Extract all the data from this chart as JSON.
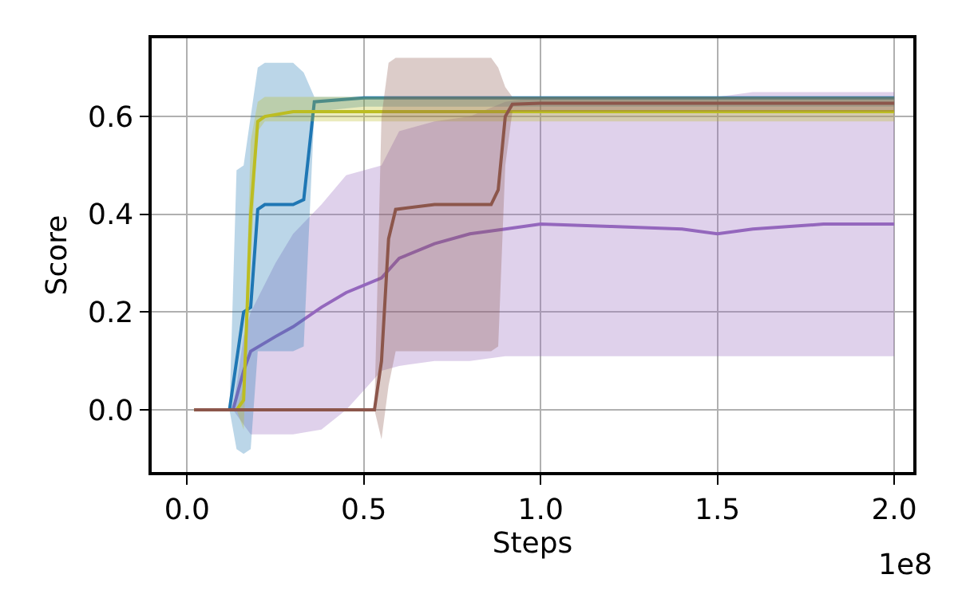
{
  "chart_data": {
    "type": "line",
    "xlabel": "Steps",
    "ylabel": "Score",
    "annotations": [
      "1e8"
    ],
    "grid": true,
    "marker": "none",
    "line_style": "solid",
    "xlim": [
      -0.1,
      2.054
    ],
    "ylim": [
      -0.127,
      0.76
    ],
    "xticks": [
      {
        "value": 0,
        "label": "0.0"
      },
      {
        "value": 0.5,
        "label": "0.5"
      },
      {
        "value": 1,
        "label": "1.0"
      },
      {
        "value": 1.5,
        "label": "1.5"
      },
      {
        "value": 2,
        "label": "2.0"
      }
    ],
    "yticks": [
      {
        "value": 0,
        "label": "0.0"
      },
      {
        "value": 0.2,
        "label": "0.2"
      },
      {
        "value": 0.4,
        "label": "0.4"
      },
      {
        "value": 0.6,
        "label": "0.6"
      }
    ],
    "series": [
      {
        "color": "#9467bd",
        "x": [
          0.02,
          0.13,
          0.16,
          0.18,
          0.25,
          0.3,
          0.38,
          0.45,
          0.55,
          0.6,
          0.7,
          0.8,
          0.9,
          1.0,
          1.2,
          1.4,
          1.5,
          1.6,
          1.8,
          2.0
        ],
        "values": [
          0,
          0,
          0.08,
          0.12,
          0.15,
          0.17,
          0.21,
          0.24,
          0.27,
          0.31,
          0.34,
          0.36,
          0.37,
          0.38,
          0.375,
          0.37,
          0.36,
          0.37,
          0.38,
          0.38
        ],
        "lower": [
          0,
          0,
          -0.03,
          -0.05,
          -0.05,
          -0.05,
          -0.04,
          0,
          0.08,
          0.09,
          0.1,
          0.1,
          0.11,
          0.11,
          0.11,
          0.11,
          0.11,
          0.11,
          0.11,
          0.11
        ],
        "upper": [
          0,
          0,
          0.15,
          0.2,
          0.3,
          0.36,
          0.42,
          0.48,
          0.5,
          0.57,
          0.59,
          0.6,
          0.63,
          0.64,
          0.64,
          0.64,
          0.64,
          0.65,
          0.65,
          0.65
        ]
      },
      {
        "color": "#1f77b4",
        "x": [
          0.02,
          0.12,
          0.14,
          0.16,
          0.18,
          0.2,
          0.22,
          0.3,
          0.33,
          0.36,
          0.5,
          1.0,
          1.5,
          2.0
        ],
        "values": [
          0,
          0,
          0.1,
          0.2,
          0.21,
          0.41,
          0.42,
          0.42,
          0.43,
          0.63,
          0.638,
          0.638,
          0.638,
          0.638
        ],
        "lower": [
          0,
          0,
          -0.08,
          -0.09,
          -0.08,
          0.12,
          0.12,
          0.12,
          0.13,
          0.61,
          0.62,
          0.62,
          0.62,
          0.62
        ],
        "upper": [
          0,
          0,
          0.49,
          0.5,
          0.6,
          0.7,
          0.71,
          0.71,
          0.69,
          0.64,
          0.64,
          0.64,
          0.64,
          0.64
        ]
      },
      {
        "color": "#bcbd22",
        "x": [
          0.02,
          0.14,
          0.16,
          0.18,
          0.2,
          0.22,
          0.3,
          0.5,
          1.0,
          1.5,
          2.0
        ],
        "values": [
          0,
          0,
          0.02,
          0.4,
          0.59,
          0.6,
          0.61,
          0.61,
          0.61,
          0.61,
          0.61
        ],
        "lower": [
          0,
          0,
          -0.04,
          0.3,
          0.57,
          0.59,
          0.59,
          0.59,
          0.59,
          0.59,
          0.59
        ],
        "upper": [
          0,
          0,
          0.05,
          0.55,
          0.63,
          0.64,
          0.64,
          0.64,
          0.64,
          0.64,
          0.64
        ]
      },
      {
        "color": "#8c564b",
        "x": [
          0.02,
          0.53,
          0.55,
          0.57,
          0.59,
          0.7,
          0.8,
          0.86,
          0.88,
          0.9,
          0.92,
          1.0,
          1.5,
          2.0
        ],
        "values": [
          0,
          0,
          0.1,
          0.35,
          0.41,
          0.42,
          0.42,
          0.42,
          0.45,
          0.6,
          0.625,
          0.627,
          0.627,
          0.627
        ],
        "lower": [
          0,
          0,
          -0.06,
          0.05,
          0.12,
          0.12,
          0.12,
          0.12,
          0.13,
          0.5,
          0.61,
          0.61,
          0.61,
          0.61
        ],
        "upper": [
          0,
          0,
          0.6,
          0.71,
          0.72,
          0.72,
          0.72,
          0.72,
          0.7,
          0.66,
          0.64,
          0.64,
          0.64,
          0.64
        ]
      }
    ]
  }
}
